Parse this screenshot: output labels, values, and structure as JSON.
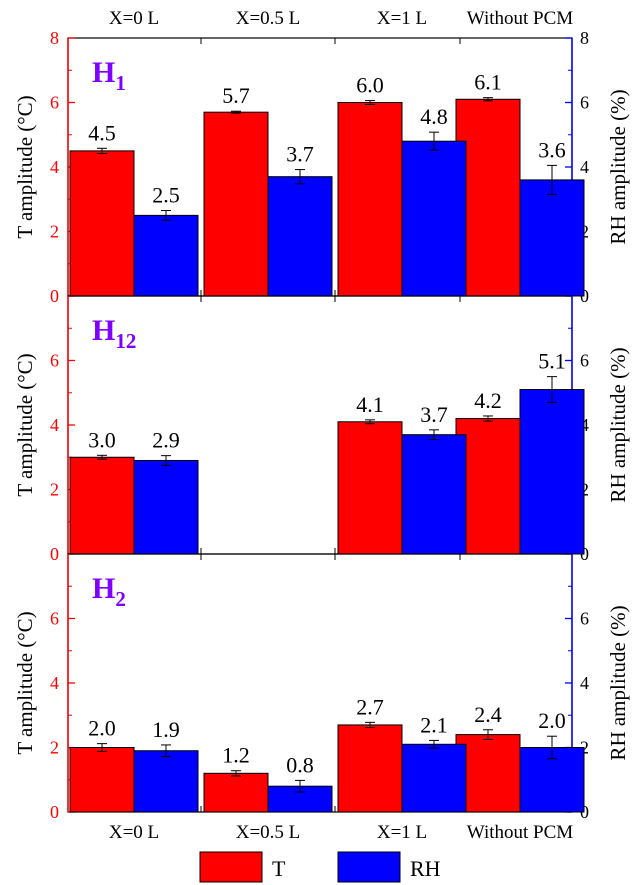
{
  "chart_data": {
    "type": "bar",
    "categories": [
      "X=0 L",
      "X=0.5 L",
      "X=1 L",
      "Without PCM"
    ],
    "left_axis_label": "T amplitude (°C)",
    "right_axis_label": "RH amplitude (%)",
    "legend": [
      "T",
      "RH"
    ],
    "legend_position": "bottom-center",
    "colors": {
      "T": "#ff0000",
      "RH": "#0000ff",
      "left_axis": "#ff0000",
      "right_axis": "#0000ff",
      "panel_label": "#8000ff"
    },
    "panels": [
      {
        "label_main": "H",
        "label_sub": "1",
        "ylim": [
          0,
          8
        ],
        "left_ticks": [
          0,
          2,
          4,
          6,
          8
        ],
        "right_ticks": [
          0,
          2,
          4,
          6,
          8
        ],
        "series": [
          {
            "name": "T",
            "values": [
              4.5,
              5.7,
              6.0,
              6.1
            ],
            "errors": [
              0.08,
              0.03,
              0.06,
              0.05
            ],
            "labels": [
              "4.5",
              "5.7",
              "6.0",
              "6.1"
            ]
          },
          {
            "name": "RH",
            "values": [
              2.5,
              3.7,
              4.8,
              3.6
            ],
            "errors": [
              0.15,
              0.22,
              0.28,
              0.45
            ],
            "labels": [
              "2.5",
              "3.7",
              "4.8",
              "3.6"
            ]
          }
        ]
      },
      {
        "label_main": "H",
        "label_sub": "12",
        "ylim": [
          0,
          8
        ],
        "left_ticks": [
          0,
          2,
          4,
          6
        ],
        "right_ticks": [
          0,
          2,
          4,
          6
        ],
        "series": [
          {
            "name": "T",
            "values": [
              3.0,
              null,
              4.1,
              4.2
            ],
            "errors": [
              0.06,
              null,
              0.06,
              0.08
            ],
            "labels": [
              "3.0",
              "",
              "4.1",
              "4.2"
            ]
          },
          {
            "name": "RH",
            "values": [
              2.9,
              null,
              3.7,
              5.1
            ],
            "errors": [
              0.15,
              null,
              0.15,
              0.4
            ],
            "labels": [
              "2.9",
              "",
              "3.7",
              "5.1"
            ]
          }
        ]
      },
      {
        "label_main": "H",
        "label_sub": "2",
        "ylim": [
          0,
          8
        ],
        "left_ticks": [
          0,
          2,
          4,
          6
        ],
        "right_ticks": [
          0,
          2,
          4,
          6
        ],
        "series": [
          {
            "name": "T",
            "values": [
              2.0,
              1.2,
              2.7,
              2.4
            ],
            "errors": [
              0.12,
              0.08,
              0.08,
              0.15
            ],
            "labels": [
              "2.0",
              "1.2",
              "2.7",
              "2.4"
            ]
          },
          {
            "name": "RH",
            "values": [
              1.9,
              0.8,
              2.1,
              2.0
            ],
            "errors": [
              0.18,
              0.18,
              0.12,
              0.35
            ],
            "labels": [
              "1.9",
              "0.8",
              "2.1",
              "2.0"
            ]
          }
        ]
      }
    ]
  }
}
